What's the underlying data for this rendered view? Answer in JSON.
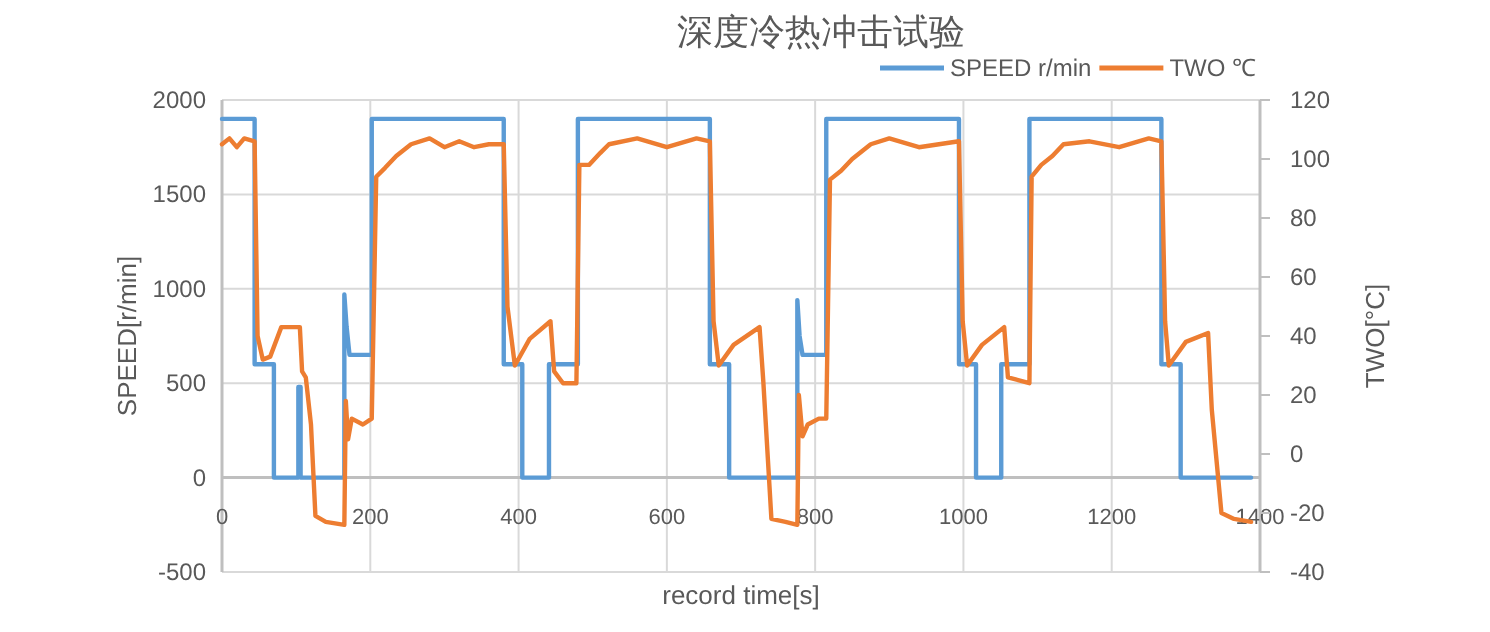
{
  "chart_data": {
    "type": "line",
    "title": "深度冷热冲击试验",
    "xlabel": "record time[s]",
    "ylabel": "SPEED[r/min]",
    "y2label": "TWO[°C]",
    "xlim": [
      0,
      1400
    ],
    "xticks": [
      0,
      200,
      400,
      600,
      800,
      1000,
      1200,
      1400
    ],
    "ylim": [
      -500,
      2000
    ],
    "yticks": [
      -500,
      0,
      500,
      1000,
      1500,
      2000
    ],
    "y2lim": [
      -40,
      120
    ],
    "y2ticks": [
      -40,
      -20,
      0,
      20,
      40,
      60,
      80,
      100,
      120
    ],
    "grid": true,
    "legend": "top right",
    "series": [
      {
        "name": "SPEED r/min",
        "color": "#5b9bd5",
        "x": [
          0,
          44,
          44,
          70,
          70,
          103,
          103,
          106,
          106,
          165,
          165,
          168,
          172,
          202,
          202,
          380,
          380,
          405,
          405,
          441,
          441,
          480,
          480,
          658,
          658,
          684,
          684,
          776,
          776,
          779,
          783,
          815,
          815,
          994,
          994,
          1017,
          1017,
          1051,
          1051,
          1089,
          1089,
          1267,
          1267,
          1293,
          1293,
          1388
        ],
        "values": [
          1900,
          1900,
          600,
          600,
          0,
          0,
          480,
          480,
          0,
          0,
          970,
          800,
          650,
          650,
          1900,
          1900,
          600,
          600,
          0,
          0,
          600,
          600,
          1900,
          1900,
          600,
          600,
          0,
          0,
          940,
          750,
          650,
          650,
          1900,
          1900,
          600,
          600,
          0,
          0,
          600,
          600,
          1900,
          1900,
          600,
          600,
          0,
          0
        ]
      },
      {
        "name": "TWO ℃",
        "color": "#ed7d31",
        "axis": "y2",
        "x": [
          0,
          10,
          20,
          30,
          44,
          48,
          55,
          65,
          80,
          105,
          108,
          113,
          120,
          126,
          140,
          165,
          167,
          170,
          175,
          190,
          202,
          208,
          220,
          235,
          255,
          280,
          300,
          320,
          340,
          360,
          380,
          385,
          395,
          415,
          443,
          448,
          460,
          478,
          482,
          495,
          510,
          522,
          560,
          600,
          640,
          658,
          663,
          670,
          690,
          725,
          730,
          741,
          760,
          776,
          778,
          783,
          790,
          805,
          815,
          820,
          835,
          850,
          875,
          900,
          940,
          994,
          999,
          1005,
          1025,
          1055,
          1060,
          1075,
          1089,
          1092,
          1105,
          1120,
          1135,
          1170,
          1210,
          1250,
          1267,
          1272,
          1277,
          1300,
          1330,
          1335,
          1348,
          1365,
          1388
        ],
        "values": [
          105,
          107,
          104,
          107,
          106,
          40,
          32,
          33,
          43,
          43,
          28,
          26,
          10,
          -21,
          -23,
          -24,
          18,
          5,
          12,
          10,
          12,
          94,
          97,
          101,
          105,
          107,
          104,
          106,
          104,
          105,
          105,
          50,
          30,
          39,
          45,
          28,
          24,
          24,
          98,
          98,
          102,
          105,
          107,
          104,
          107,
          106,
          45,
          30,
          37,
          43,
          25,
          -22,
          -23,
          -24,
          20,
          6,
          10,
          12,
          12,
          93,
          96,
          100,
          105,
          107,
          104,
          106,
          45,
          30,
          37,
          43,
          26,
          25,
          24,
          94,
          98,
          101,
          105,
          106,
          104,
          107,
          106,
          45,
          30,
          38,
          41,
          15,
          -20,
          -22,
          -23
        ]
      }
    ]
  }
}
